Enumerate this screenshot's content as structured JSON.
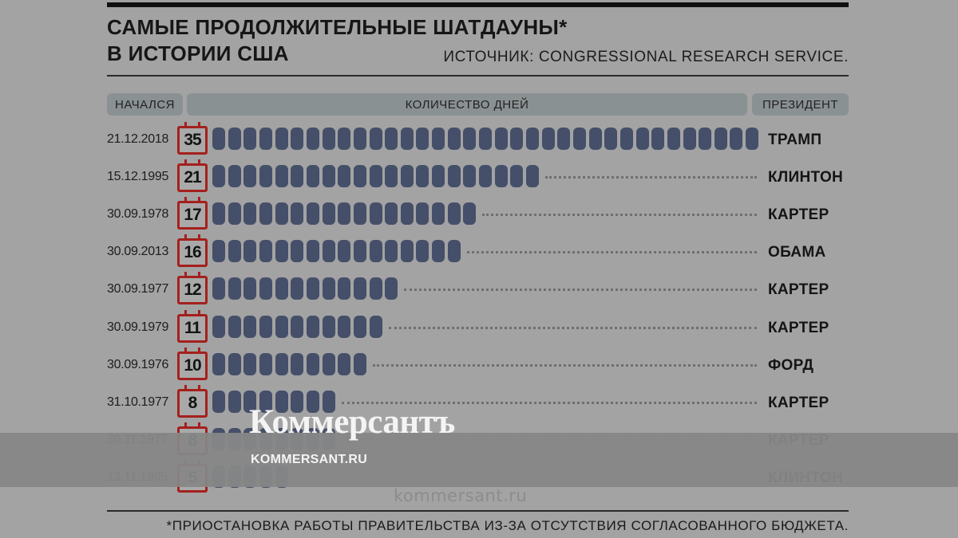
{
  "header": {
    "title_line1": "САМЫЕ ПРОДОЛЖИТЕЛЬНЫЕ ШАТДАУНЫ*",
    "title_line2": "В ИСТОРИИ США",
    "source": "ИСТОЧНИК: CONGRESSIONAL RESEARCH SERVICE."
  },
  "footnote": "*ПРИОСТАНОВКА РАБОТЫ ПРАВИТЕЛЬСТВА ИЗ-ЗА ОТСУТСТВИЯ СОГЛАСОВАННОГО БЮДЖЕТА.",
  "watermark": {
    "logo": "Коммерсантъ",
    "site": "KOMMERSANT.RU",
    "url": "kommersant.ru"
  },
  "colors": {
    "bar": "#454f69",
    "calendar_border": "#a4201c",
    "background": "#a3a3a3"
  },
  "chart_data": {
    "type": "bar",
    "title": "САМЫЕ ПРОДОЛЖИТЕЛЬНЫЕ ШАТДАУНЫ* В ИСТОРИИ США",
    "column_headers": {
      "start": "НАЧАЛСЯ",
      "days": "КОЛИЧЕСТВО ДНЕЙ",
      "president": "ПРЕЗИДЕНТ"
    },
    "rows": [
      {
        "start": "21.12.2018",
        "days": 35,
        "president": "ТРАМП"
      },
      {
        "start": "15.12.1995",
        "days": 21,
        "president": "КЛИНТОН"
      },
      {
        "start": "30.09.1978",
        "days": 17,
        "president": "КАРТЕР"
      },
      {
        "start": "30.09.2013",
        "days": 16,
        "president": "ОБАМА"
      },
      {
        "start": "30.09.1977",
        "days": 12,
        "president": "КАРТЕР"
      },
      {
        "start": "30.09.1979",
        "days": 11,
        "president": "КАРТЕР"
      },
      {
        "start": "30.09.1976",
        "days": 10,
        "president": "ФОРД"
      },
      {
        "start": "31.10.1977",
        "days": 8,
        "president": "КАРТЕР"
      },
      {
        "start": "30.11.1977",
        "days": 8,
        "president": "КАРТЕР"
      },
      {
        "start": "13.11.1995",
        "days": 5,
        "president": "КЛИНТОН"
      }
    ],
    "max_days": 35
  }
}
